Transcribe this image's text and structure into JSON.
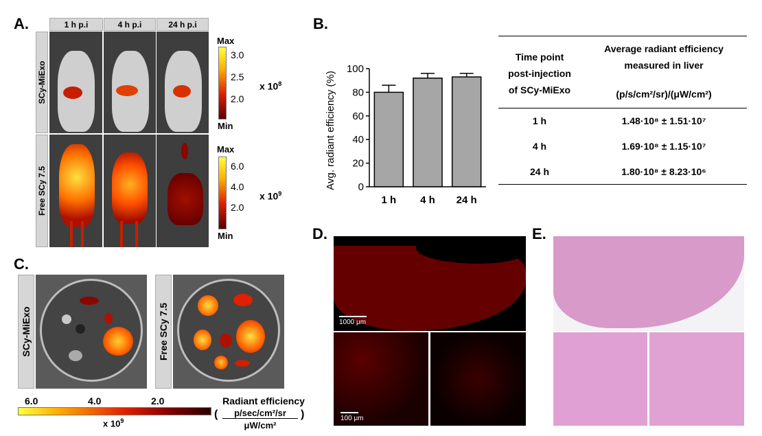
{
  "panels": {
    "a": "A.",
    "b": "B.",
    "c": "C.",
    "d": "D.",
    "e": "E."
  },
  "panel_a": {
    "timepoints": [
      "1 h p.i",
      "4 h p.i",
      "24 h p.i"
    ],
    "row_labels": [
      "SCy-MiExo",
      "Free SCy 7.5"
    ],
    "scale_top": {
      "max": "Max",
      "min": "Min",
      "ticks": [
        "3.0",
        "2.5",
        "2.0"
      ],
      "multiplier": "x 10",
      "exp": "8"
    },
    "scale_bottom": {
      "max": "Max",
      "min": "Min",
      "ticks": [
        "6.0",
        "4.0",
        "2.0"
      ],
      "multiplier": "x 10",
      "exp": "9"
    },
    "colors": {
      "low": "#5a0000",
      "mid": "#e02000",
      "high": "#ffff40"
    }
  },
  "chart_data": {
    "type": "bar",
    "categories": [
      "1 h",
      "4 h",
      "24 h"
    ],
    "values": [
      80,
      92,
      93
    ],
    "errors": [
      6,
      4,
      3
    ],
    "xlabel": "",
    "ylabel": "Avg. radiant efficiency (%)",
    "ylim": [
      0,
      100
    ],
    "yticks": [
      "0",
      "20",
      "40",
      "60",
      "80",
      "100"
    ],
    "bar_color": "#a6a6a6"
  },
  "table_b": {
    "col1_header_lines": [
      "Time point",
      "post-injection",
      "of SCy-MiExo"
    ],
    "col2_header_lines": [
      "Average radiant efficiency",
      "measured in liver"
    ],
    "col2_unit": "(p/s/cm²/sr)/(μW/cm²)",
    "rows": [
      {
        "time": "1 h",
        "value": "1.48·10⁸ ± 1.51·10⁷"
      },
      {
        "time": "4 h",
        "value": "1.69·10⁸ ± 1.15·10⁷"
      },
      {
        "time": "24 h",
        "value": "1.80·10⁸ ± 8.23·10⁶"
      }
    ]
  },
  "panel_c": {
    "labels": [
      "SCy-MiExo",
      "Free SCy 7.5"
    ],
    "scale_ticks": [
      "6.0",
      "4.0",
      "2.0"
    ],
    "multiplier": "x 10",
    "exp": "9",
    "unit_title": "Radiant efficiency",
    "unit_num": "p/sec/cm²/sr",
    "unit_den": "μW/cm²",
    "paren_open": "(",
    "paren_close": ")"
  },
  "panel_d": {
    "scalebar_top": "1000 μm",
    "scalebar_bottom": "100 μm"
  }
}
